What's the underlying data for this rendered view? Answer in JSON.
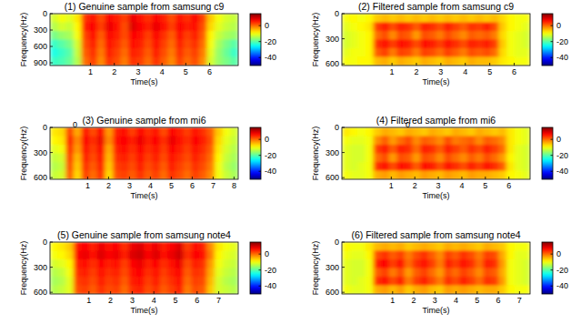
{
  "chart_data": [
    {
      "type": "heatmap",
      "title": "(1) Genuine sample from samsung c9",
      "x_label": "Time(s)",
      "y_label": "Frequency(Hz)",
      "xlim": [
        -0.7,
        7.2
      ],
      "xticks": [
        1,
        2,
        3,
        4,
        5,
        6
      ],
      "ylim": [
        0,
        950
      ],
      "yticks": [
        0,
        300,
        600,
        900
      ],
      "colorbar": {
        "range": [
          -50,
          15
        ],
        "ticks": [
          0,
          -20,
          -40
        ]
      },
      "cells": [
        [
          -12,
          -10,
          -11,
          -8,
          4,
          6,
          2,
          7,
          5,
          3,
          8,
          6,
          4,
          7,
          5,
          2,
          6,
          4,
          7,
          3,
          -6,
          -10,
          -12,
          -13
        ],
        [
          -14,
          -12,
          -13,
          -9,
          5,
          7,
          3,
          8,
          6,
          2,
          9,
          7,
          5,
          8,
          6,
          3,
          7,
          5,
          6,
          2,
          -7,
          -11,
          -13,
          -14
        ],
        [
          -18,
          -16,
          -15,
          -10,
          3,
          6,
          1,
          7,
          5,
          2,
          7,
          6,
          3,
          7,
          4,
          1,
          6,
          3,
          5,
          1,
          -9,
          -13,
          -15,
          -16
        ],
        [
          -22,
          -20,
          -18,
          -12,
          2,
          5,
          0,
          6,
          4,
          1,
          6,
          5,
          2,
          6,
          3,
          0,
          5,
          2,
          4,
          0,
          -10,
          -15,
          -18,
          -20
        ],
        [
          -24,
          -22,
          -20,
          -13,
          1,
          4,
          -1,
          5,
          3,
          0,
          5,
          4,
          1,
          5,
          2,
          -1,
          4,
          1,
          3,
          -1,
          -11,
          -16,
          -19,
          -22
        ],
        [
          -22,
          -21,
          -19,
          -14,
          0,
          3,
          -2,
          4,
          2,
          -1,
          4,
          3,
          0,
          4,
          1,
          -2,
          3,
          0,
          2,
          -2,
          -12,
          -16,
          -18,
          -20
        ]
      ]
    },
    {
      "type": "heatmap",
      "title": "(2) Filtered sample from samsung c9",
      "x_label": "Time(s)",
      "y_label": "Frequency(Hz)",
      "xlim": [
        -1.05,
        6.65
      ],
      "xticks": [
        1,
        2,
        3,
        4,
        5,
        6
      ],
      "ylim": [
        0,
        620
      ],
      "yticks": [
        0,
        300,
        600
      ],
      "colorbar": {
        "range": [
          -50,
          15
        ],
        "ticks": [
          0,
          -20,
          -40
        ]
      },
      "cells": [
        [
          -10,
          -9,
          -10,
          -9,
          -6,
          -5,
          -6,
          -5,
          -6,
          -5,
          -6,
          -5,
          -6,
          -5,
          -6,
          -5,
          -6,
          -5,
          -6,
          -5,
          -7,
          -9,
          -10,
          -10
        ],
        [
          -11,
          -10,
          -9,
          -8,
          3,
          5,
          2,
          5,
          4,
          1,
          5,
          4,
          2,
          5,
          3,
          1,
          4,
          3,
          5,
          2,
          -6,
          -9,
          -10,
          -11
        ],
        [
          -12,
          -11,
          -10,
          -9,
          0,
          2,
          -2,
          2,
          1,
          -3,
          2,
          1,
          -1,
          2,
          0,
          -2,
          1,
          0,
          1,
          -1,
          -7,
          -10,
          -11,
          -12
        ],
        [
          -12,
          -11,
          -10,
          -9,
          4,
          6,
          3,
          6,
          5,
          2,
          6,
          5,
          3,
          6,
          4,
          2,
          5,
          4,
          5,
          3,
          -6,
          -10,
          -11,
          -12
        ],
        [
          -11,
          -10,
          -10,
          -9,
          1,
          3,
          -1,
          3,
          2,
          -1,
          3,
          2,
          0,
          3,
          1,
          -1,
          2,
          1,
          2,
          0,
          -7,
          -10,
          -11,
          -11
        ],
        [
          -10,
          -10,
          -9,
          -9,
          -5,
          -4,
          -6,
          -4,
          -5,
          -6,
          -4,
          -5,
          -6,
          -4,
          -5,
          -6,
          -4,
          -5,
          -5,
          -6,
          -8,
          -9,
          -10,
          -10
        ]
      ]
    },
    {
      "type": "heatmap",
      "title": "(3) Genuine sample from mi6",
      "x_label": "Time(s)",
      "y_label": "Frequency(Hz)",
      "xlim": [
        -0.8,
        8.2
      ],
      "xticks": [
        1,
        2,
        3,
        4,
        5,
        6,
        7,
        8
      ],
      "ylim": [
        0,
        620
      ],
      "yticks": [
        0,
        300,
        600
      ],
      "colorbar": {
        "range": [
          -50,
          15
        ],
        "ticks": [
          0,
          -20,
          -40
        ]
      },
      "annotations": [
        {
          "text": "0",
          "x": 0.4
        }
      ],
      "cells": [
        [
          -8,
          -7,
          3,
          -4,
          6,
          2,
          7,
          -3,
          5,
          6,
          3,
          7,
          4,
          6,
          2,
          7,
          5,
          3,
          6,
          4,
          1,
          -6,
          -10,
          -12
        ],
        [
          -9,
          -8,
          5,
          -2,
          7,
          4,
          8,
          -2,
          6,
          7,
          5,
          8,
          5,
          7,
          4,
          8,
          6,
          4,
          7,
          5,
          2,
          -7,
          -11,
          -13
        ],
        [
          -11,
          -10,
          4,
          -3,
          6,
          3,
          7,
          -4,
          5,
          6,
          4,
          7,
          4,
          6,
          3,
          7,
          5,
          3,
          6,
          4,
          1,
          -8,
          -12,
          -14
        ],
        [
          -13,
          -12,
          3,
          -5,
          5,
          2,
          6,
          -5,
          4,
          5,
          3,
          6,
          3,
          5,
          2,
          6,
          4,
          2,
          5,
          3,
          0,
          -9,
          -13,
          -15
        ],
        [
          -14,
          -13,
          2,
          -6,
          4,
          1,
          5,
          -6,
          3,
          4,
          2,
          5,
          2,
          4,
          1,
          5,
          3,
          1,
          4,
          2,
          -1,
          -10,
          -14,
          -16
        ],
        [
          -13,
          -12,
          1,
          -7,
          3,
          0,
          4,
          -7,
          2,
          3,
          1,
          4,
          1,
          3,
          0,
          4,
          2,
          0,
          3,
          1,
          -2,
          -10,
          -13,
          -15
        ]
      ]
    },
    {
      "type": "heatmap",
      "title": "(4) Filtered sample from mi6",
      "x_label": "Time(s)",
      "y_label": "Frequency(Hz)",
      "xlim": [
        -1.1,
        6.9
      ],
      "xticks": [
        1,
        2,
        3,
        4,
        5,
        6
      ],
      "ylim": [
        0,
        620
      ],
      "yticks": [
        0,
        300,
        600
      ],
      "colorbar": {
        "range": [
          -50,
          15
        ],
        "ticks": [
          0,
          -20,
          -40
        ]
      },
      "annotations": [
        {
          "text": "0",
          "x": 1.7
        }
      ],
      "cells": [
        [
          -8,
          -9,
          -10,
          -9,
          -6,
          -4,
          -5,
          -6,
          -4,
          -5,
          -6,
          -4,
          -5,
          -6,
          -4,
          -5,
          -6,
          -4,
          -5,
          -6,
          -5,
          -8,
          -10,
          -11
        ],
        [
          -10,
          -11,
          -11,
          -10,
          -2,
          1,
          -3,
          0,
          2,
          -2,
          1,
          0,
          -2,
          2,
          -1,
          0,
          1,
          -2,
          1,
          0,
          -2,
          -8,
          -10,
          -11
        ],
        [
          -11,
          -12,
          -12,
          -10,
          3,
          5,
          1,
          5,
          4,
          0,
          5,
          4,
          1,
          5,
          3,
          1,
          4,
          2,
          5,
          3,
          0,
          -8,
          -11,
          -12
        ],
        [
          -11,
          -12,
          -12,
          -10,
          0,
          2,
          -3,
          2,
          1,
          -3,
          2,
          1,
          -2,
          2,
          0,
          -2,
          1,
          -1,
          2,
          0,
          -3,
          -9,
          -11,
          -12
        ],
        [
          -11,
          -12,
          -11,
          -10,
          4,
          6,
          2,
          6,
          5,
          1,
          6,
          5,
          2,
          6,
          4,
          2,
          5,
          3,
          6,
          4,
          1,
          -8,
          -11,
          -12
        ],
        [
          -10,
          -11,
          -11,
          -10,
          -4,
          -3,
          -5,
          -3,
          -4,
          -5,
          -3,
          -4,
          -5,
          -3,
          -4,
          -5,
          -3,
          -4,
          -4,
          -5,
          -6,
          -9,
          -10,
          -11
        ]
      ]
    },
    {
      "type": "heatmap",
      "title": "(5) Genuine sample from samsung note4",
      "x_label": "Time(s)",
      "y_label": "Frequency(Hz)",
      "xlim": [
        -0.8,
        7.9
      ],
      "xticks": [
        1,
        2,
        3,
        4,
        5,
        6,
        7
      ],
      "ylim": [
        0,
        620
      ],
      "yticks": [
        0,
        300,
        600
      ],
      "colorbar": {
        "range": [
          -50,
          15
        ],
        "ticks": [
          0,
          -20,
          -40
        ]
      },
      "cells": [
        [
          -9,
          -8,
          -6,
          6,
          7,
          5,
          8,
          6,
          7,
          4,
          8,
          9,
          6,
          8,
          5,
          7,
          9,
          3,
          6,
          5,
          -2,
          -8,
          -10,
          -11
        ],
        [
          -10,
          -9,
          -7,
          7,
          8,
          6,
          9,
          7,
          8,
          5,
          9,
          10,
          7,
          9,
          6,
          8,
          10,
          4,
          7,
          6,
          -1,
          -9,
          -11,
          -12
        ],
        [
          -12,
          -11,
          -9,
          5,
          6,
          4,
          7,
          5,
          6,
          3,
          7,
          8,
          5,
          7,
          4,
          6,
          8,
          2,
          5,
          4,
          -3,
          -10,
          -12,
          -13
        ],
        [
          -14,
          -13,
          -10,
          4,
          5,
          3,
          6,
          4,
          5,
          2,
          6,
          7,
          4,
          6,
          3,
          5,
          7,
          1,
          4,
          3,
          -4,
          -11,
          -13,
          -14
        ],
        [
          -15,
          -14,
          -11,
          3,
          4,
          2,
          5,
          3,
          4,
          1,
          5,
          6,
          3,
          5,
          2,
          4,
          6,
          0,
          3,
          2,
          -5,
          -12,
          -14,
          -15
        ],
        [
          -14,
          -13,
          -11,
          2,
          3,
          1,
          4,
          2,
          3,
          0,
          4,
          5,
          2,
          4,
          1,
          3,
          5,
          -1,
          2,
          1,
          -6,
          -12,
          -13,
          -14
        ]
      ]
    },
    {
      "type": "heatmap",
      "title": "(6) Filtered sample from samsung note4",
      "x_label": "Time(s)",
      "y_label": "Frequency(Hz)",
      "xlim": [
        -1.4,
        7.5
      ],
      "xticks": [
        1,
        2,
        3,
        4,
        5,
        6,
        7
      ],
      "ylim": [
        0,
        620
      ],
      "yticks": [
        0,
        300,
        600
      ],
      "colorbar": {
        "range": [
          -50,
          15
        ],
        "ticks": [
          0,
          -20,
          -40
        ]
      },
      "cells": [
        [
          -9,
          -10,
          -10,
          -8,
          -5,
          -4,
          -5,
          -4,
          -6,
          -5,
          -4,
          -5,
          -6,
          -4,
          -5,
          -4,
          -5,
          -6,
          -4,
          -5,
          -6,
          -9,
          -10,
          -10
        ],
        [
          -10,
          -11,
          -11,
          -9,
          2,
          4,
          1,
          3,
          -1,
          2,
          4,
          1,
          -2,
          3,
          1,
          4,
          2,
          -1,
          3,
          2,
          -4,
          -9,
          -11,
          -11
        ],
        [
          -11,
          -12,
          -12,
          -10,
          5,
          7,
          3,
          6,
          0,
          4,
          6,
          3,
          -1,
          5,
          3,
          6,
          4,
          0,
          5,
          4,
          -3,
          -10,
          -11,
          -12
        ],
        [
          -11,
          -12,
          -12,
          -10,
          1,
          3,
          -1,
          2,
          -3,
          1,
          3,
          0,
          -3,
          2,
          0,
          3,
          1,
          -2,
          2,
          1,
          -4,
          -10,
          -11,
          -12
        ],
        [
          -11,
          -12,
          -11,
          -10,
          4,
          6,
          2,
          5,
          -1,
          3,
          5,
          2,
          -1,
          4,
          2,
          5,
          3,
          0,
          4,
          3,
          -3,
          -10,
          -11,
          -12
        ],
        [
          -10,
          -11,
          -11,
          -10,
          -4,
          -3,
          -5,
          -3,
          -6,
          -4,
          -3,
          -5,
          -6,
          -3,
          -4,
          -3,
          -4,
          -5,
          -4,
          -4,
          -6,
          -9,
          -10,
          -10
        ]
      ]
    }
  ]
}
